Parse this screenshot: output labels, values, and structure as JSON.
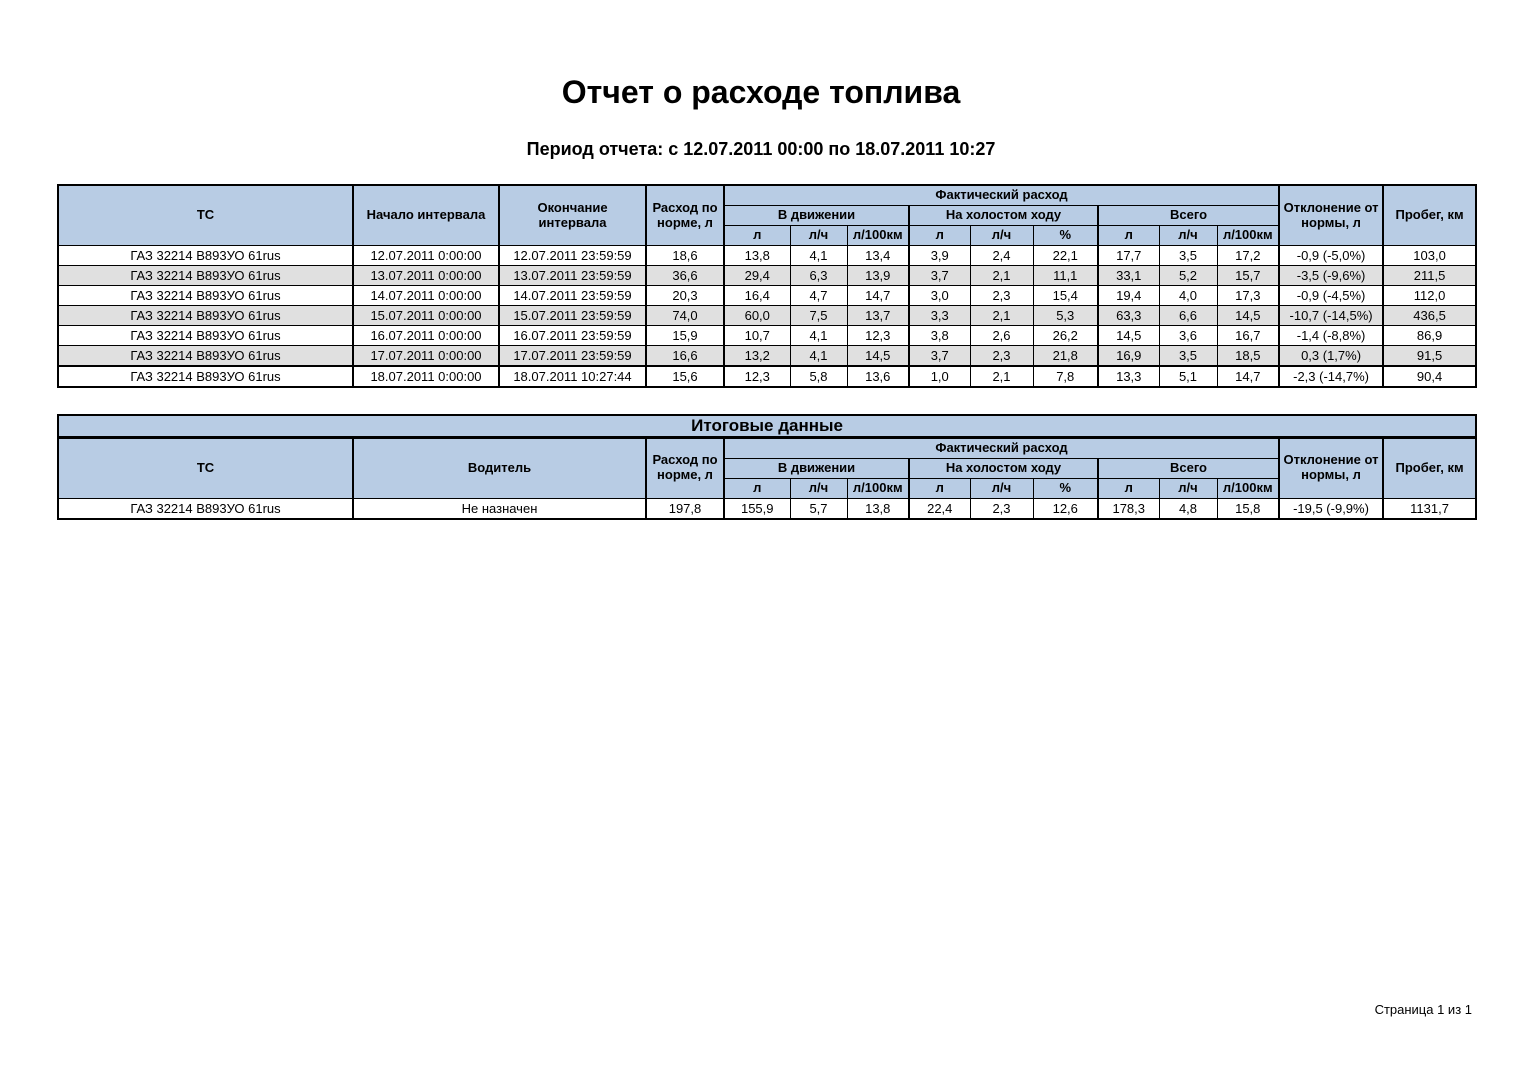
{
  "page": {
    "title": "Отчет о расходе топлива",
    "subtitle": "Период отчета: с 12.07.2011 00:00 по 18.07.2011 10:27",
    "footer": "Страница 1 из 1"
  },
  "colors": {
    "header_bg": "#b8cce4",
    "row_alt_bg": "#e0e0e0",
    "border": "#000000"
  },
  "main_table": {
    "headers": {
      "tc": "ТС",
      "interval_start": "Начало интервала",
      "interval_end": "Окончание интервала",
      "norm": "Расход по норме, л",
      "actual_group": "Фактический расход",
      "moving_group": "В движении",
      "idle_group": "На холостом ходу",
      "total_group": "Всего",
      "deviation": "Отклонение от нормы, л",
      "mileage": "Пробег, км"
    },
    "unit_headers": [
      "л",
      "л/ч",
      "л/100км",
      "л",
      "л/ч",
      "%",
      "л",
      "л/ч",
      "л/100км"
    ],
    "rows": [
      [
        "ГАЗ 32214 В893УО 61rus",
        "12.07.2011 0:00:00",
        "12.07.2011 23:59:59",
        "18,6",
        "13,8",
        "4,1",
        "13,4",
        "3,9",
        "2,4",
        "22,1",
        "17,7",
        "3,5",
        "17,2",
        "-0,9 (-5,0%)",
        "103,0"
      ],
      [
        "ГАЗ 32214 В893УО 61rus",
        "13.07.2011 0:00:00",
        "13.07.2011 23:59:59",
        "36,6",
        "29,4",
        "6,3",
        "13,9",
        "3,7",
        "2,1",
        "11,1",
        "33,1",
        "5,2",
        "15,7",
        "-3,5 (-9,6%)",
        "211,5"
      ],
      [
        "ГАЗ 32214 В893УО 61rus",
        "14.07.2011 0:00:00",
        "14.07.2011 23:59:59",
        "20,3",
        "16,4",
        "4,7",
        "14,7",
        "3,0",
        "2,3",
        "15,4",
        "19,4",
        "4,0",
        "17,3",
        "-0,9 (-4,5%)",
        "112,0"
      ],
      [
        "ГАЗ 32214 В893УО 61rus",
        "15.07.2011 0:00:00",
        "15.07.2011 23:59:59",
        "74,0",
        "60,0",
        "7,5",
        "13,7",
        "3,3",
        "2,1",
        "5,3",
        "63,3",
        "6,6",
        "14,5",
        "-10,7 (-14,5%)",
        "436,5"
      ],
      [
        "ГАЗ 32214 В893УО 61rus",
        "16.07.2011 0:00:00",
        "16.07.2011 23:59:59",
        "15,9",
        "10,7",
        "4,1",
        "12,3",
        "3,8",
        "2,6",
        "26,2",
        "14,5",
        "3,6",
        "16,7",
        "-1,4 (-8,8%)",
        "86,9"
      ],
      [
        "ГАЗ 32214 В893УО 61rus",
        "17.07.2011 0:00:00",
        "17.07.2011 23:59:59",
        "16,6",
        "13,2",
        "4,1",
        "14,5",
        "3,7",
        "2,3",
        "21,8",
        "16,9",
        "3,5",
        "18,5",
        "0,3 (1,7%)",
        "91,5"
      ],
      [
        "ГАЗ 32214 В893УО 61rus",
        "18.07.2011 0:00:00",
        "18.07.2011 10:27:44",
        "15,6",
        "12,3",
        "5,8",
        "13,6",
        "1,0",
        "2,1",
        "7,8",
        "13,3",
        "5,1",
        "14,7",
        "-2,3 (-14,7%)",
        "90,4"
      ]
    ]
  },
  "summary_table": {
    "title": "Итоговые данные",
    "headers": {
      "tc": "ТС",
      "driver": "Водитель",
      "norm": "Расход по норме, л",
      "actual_group": "Фактический расход",
      "moving_group": "В движении",
      "idle_group": "На холостом ходу",
      "total_group": "Всего",
      "deviation": "Отклонение от нормы, л",
      "mileage": "Пробег, км"
    },
    "unit_headers": [
      "л",
      "л/ч",
      "л/100км",
      "л",
      "л/ч",
      "%",
      "л",
      "л/ч",
      "л/100км"
    ],
    "rows": [
      [
        "ГАЗ 32214 В893УО 61rus",
        "Не назначен",
        "197,8",
        "155,9",
        "5,7",
        "13,8",
        "22,4",
        "2,3",
        "12,6",
        "178,3",
        "4,8",
        "15,8",
        "-19,5 (-9,9%)",
        "1131,7"
      ]
    ]
  }
}
